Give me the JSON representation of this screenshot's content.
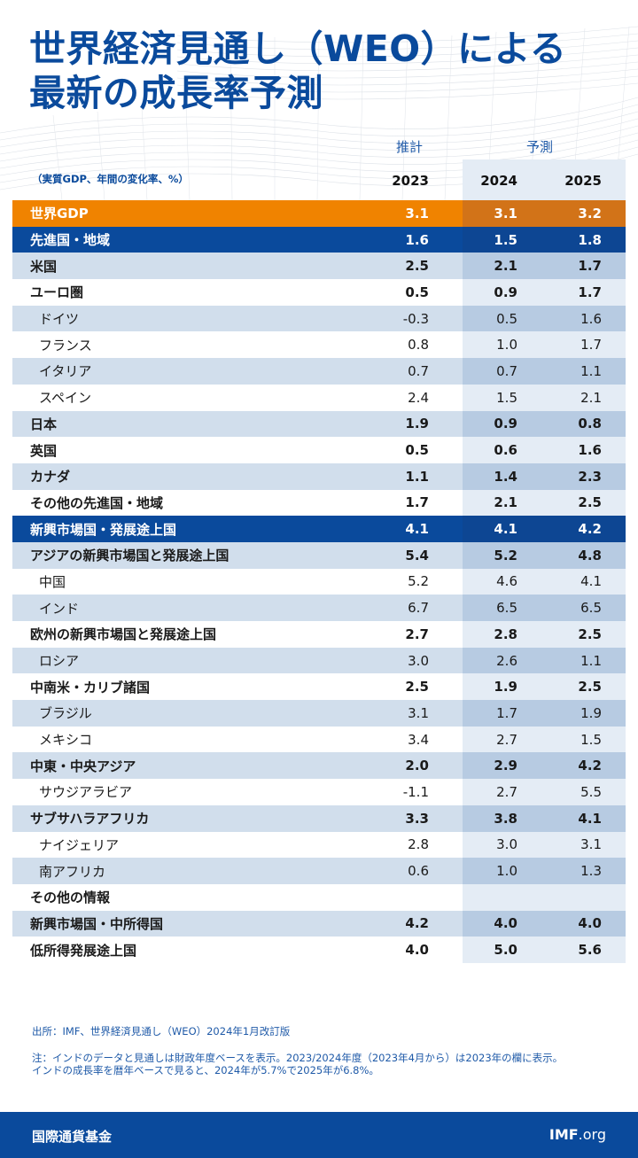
{
  "title": {
    "line1": "世界経済見通し（WEO）による",
    "line2": "最新の成長率予測"
  },
  "header": {
    "estimate_label": "推計",
    "forecast_label": "予測",
    "unit_label": "（実質GDP、年間の変化率、%）",
    "years": [
      "2023",
      "2024",
      "2025"
    ]
  },
  "rows": [
    {
      "label": "世界GDP",
      "v": [
        "3.1",
        "3.1",
        "3.2"
      ]
    },
    {
      "label": "先進国・地域",
      "v": [
        "1.6",
        "1.5",
        "1.8"
      ]
    },
    {
      "label": "米国",
      "v": [
        "2.5",
        "2.1",
        "1.7"
      ]
    },
    {
      "label": "ユーロ圏",
      "v": [
        "0.5",
        "0.9",
        "1.7"
      ]
    },
    {
      "label": "ドイツ",
      "v": [
        "-0.3",
        "0.5",
        "1.6"
      ]
    },
    {
      "label": "フランス",
      "v": [
        "0.8",
        "1.0",
        "1.7"
      ]
    },
    {
      "label": "イタリア",
      "v": [
        "0.7",
        "0.7",
        "1.1"
      ]
    },
    {
      "label": "スペイン",
      "v": [
        "2.4",
        "1.5",
        "2.1"
      ]
    },
    {
      "label": "日本",
      "v": [
        "1.9",
        "0.9",
        "0.8"
      ]
    },
    {
      "label": "英国",
      "v": [
        "0.5",
        "0.6",
        "1.6"
      ]
    },
    {
      "label": "カナダ",
      "v": [
        "1.1",
        "1.4",
        "2.3"
      ]
    },
    {
      "label": "その他の先進国・地域",
      "v": [
        "1.7",
        "2.1",
        "2.5"
      ]
    },
    {
      "label": "新興市場国・発展途上国",
      "v": [
        "4.1",
        "4.1",
        "4.2"
      ]
    },
    {
      "label": "アジアの新興市場国と発展途上国",
      "v": [
        "5.4",
        "5.2",
        "4.8"
      ]
    },
    {
      "label": "中国",
      "v": [
        "5.2",
        "4.6",
        "4.1"
      ]
    },
    {
      "label": "インド",
      "v": [
        "6.7",
        "6.5",
        "6.5"
      ]
    },
    {
      "label": "欧州の新興市場国と発展途上国",
      "v": [
        "2.7",
        "2.8",
        "2.5"
      ]
    },
    {
      "label": "ロシア",
      "v": [
        "3.0",
        "2.6",
        "1.1"
      ]
    },
    {
      "label": "中南米・カリブ諸国",
      "v": [
        "2.5",
        "1.9",
        "2.5"
      ]
    },
    {
      "label": "ブラジル",
      "v": [
        "3.1",
        "1.7",
        "1.9"
      ]
    },
    {
      "label": "メキシコ",
      "v": [
        "3.4",
        "2.7",
        "1.5"
      ]
    },
    {
      "label": "中東・中央アジア",
      "v": [
        "2.0",
        "2.9",
        "4.2"
      ]
    },
    {
      "label": "サウジアラビア",
      "v": [
        "-1.1",
        "2.7",
        "5.5"
      ]
    },
    {
      "label": "サブサハラアフリカ",
      "v": [
        "3.3",
        "3.8",
        "4.1"
      ]
    },
    {
      "label": "ナイジェリア",
      "v": [
        "2.8",
        "3.0",
        "3.1"
      ]
    },
    {
      "label": "南アフリカ",
      "v": [
        "0.6",
        "1.0",
        "1.3"
      ]
    },
    {
      "label": "その他の情報",
      "v": [
        "",
        "",
        ""
      ]
    },
    {
      "label": "新興市場国・中所得国",
      "v": [
        "4.2",
        "4.0",
        "4.0"
      ]
    },
    {
      "label": "低所得発展途上国",
      "v": [
        "4.0",
        "5.0",
        "5.6"
      ]
    }
  ],
  "notes": {
    "source": "出所：IMF、世界経済見通し（WEO）2024年1月改訂版",
    "note_line1": "注：インドのデータと見通しは財政年度ベースを表示。2023/2024年度（2023年4月から）は2023年の欄に表示。",
    "note_line2": "インドの成長率を暦年ベースで見ると、2024年が5.7%で2025年が6.8%。"
  },
  "footer": {
    "org": "国際通貨基金",
    "site_bold": "IMF",
    "site_rest": ".org"
  },
  "colors": {
    "brand_blue": "#0a4a9c",
    "world_orange": "#f08300",
    "row_shade": "#d1deec"
  }
}
